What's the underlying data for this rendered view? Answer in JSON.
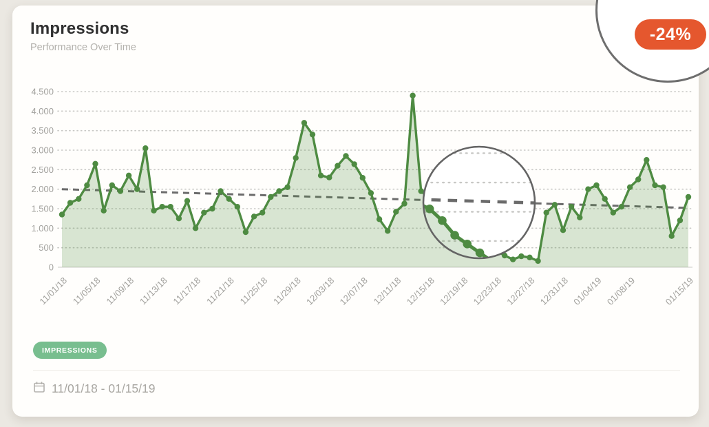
{
  "card": {
    "title": "Impressions",
    "subtitle": "Performance Over Time",
    "change_badge": "-24%",
    "legend_tag": "IMPRESSIONS",
    "date_range": "11/01/18 - 01/15/19"
  },
  "colors": {
    "line": "#4E8B42",
    "fill_opacity": 0.22,
    "legend_chip": "#78BE8F",
    "badge": "#E5572E",
    "trend": "#6B6B6B",
    "grid": "#C8C8C5",
    "axis_text": "#A2A19D",
    "lens_stroke": "#646464",
    "axis_line": "#DCDCD6"
  },
  "chart_data": {
    "type": "area",
    "title": "Impressions",
    "subtitle": "Performance Over Time",
    "x_start": "11/01/18",
    "x_end": "01/15/19",
    "x_tick_labels": [
      "11/01/18",
      "11/05/18",
      "11/09/18",
      "11/13/18",
      "11/17/18",
      "11/21/18",
      "11/25/18",
      "11/29/18",
      "12/03/18",
      "12/07/18",
      "12/11/18",
      "12/15/18",
      "12/19/18",
      "12/23/18",
      "12/27/18",
      "12/31/18",
      "01/04/19",
      "01/08/19",
      "01/15/19"
    ],
    "x_tick_days": [
      0,
      4,
      8,
      12,
      16,
      20,
      24,
      28,
      32,
      36,
      40,
      44,
      48,
      52,
      56,
      60,
      64,
      68,
      75
    ],
    "y_tick_values": [
      0,
      500,
      1000,
      1500,
      2000,
      2500,
      3000,
      3500,
      4000,
      4500
    ],
    "y_tick_labels": [
      "0",
      "500",
      "1.000",
      "1.500",
      "2.000",
      "2.500",
      "3.000",
      "3.500",
      "4.000",
      "4.500"
    ],
    "ylim": [
      0,
      4500
    ],
    "values": [
      1350,
      1650,
      1750,
      2100,
      2650,
      1450,
      2100,
      1950,
      2350,
      2000,
      3050,
      1450,
      1550,
      1550,
      1250,
      1700,
      1000,
      1400,
      1500,
      1950,
      1750,
      1550,
      900,
      1300,
      1400,
      1800,
      1950,
      2050,
      2800,
      3700,
      3400,
      2350,
      2300,
      2600,
      2850,
      2640,
      2290,
      1900,
      1230,
      930,
      1420,
      1630,
      4400,
      1950,
      1750,
      1650,
      1550,
      1350,
      1100,
      950,
      800,
      650,
      425,
      300,
      200,
      280,
      250,
      160,
      1400,
      1600,
      950,
      1550,
      1275,
      2000,
      2100,
      1750,
      1400,
      1550,
      2050,
      2250,
      2750,
      2100,
      2050,
      800,
      1200,
      1800
    ],
    "trend": {
      "type": "linear",
      "start_value": 2000,
      "end_value": 1520,
      "change": "-24%"
    },
    "legend": [
      "IMPRESSIONS"
    ],
    "legend_position": "bottom-left",
    "grid": "horizontal-dotted",
    "annotations": [
      {
        "type": "magnifier-circle",
        "highlights": "declining segment 12/15/18 - 12/23/18"
      },
      {
        "type": "circle-callout",
        "highlights": "-24% change badge"
      }
    ]
  }
}
